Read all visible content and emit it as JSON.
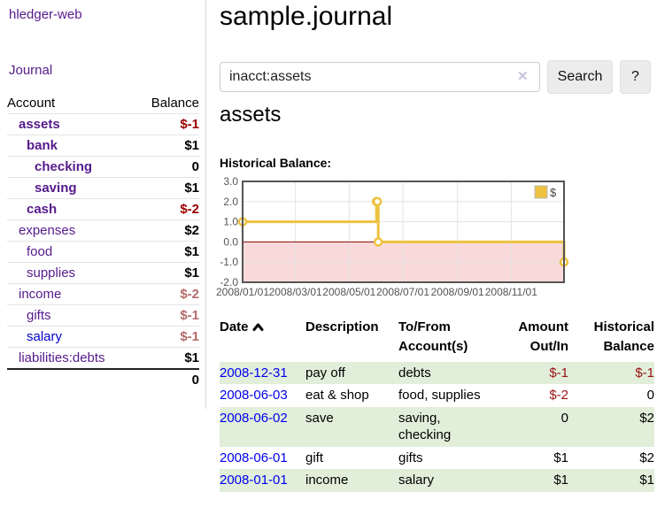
{
  "app": {
    "name": "hledger-web",
    "nav_journal": "Journal"
  },
  "sidebar": {
    "accounts_header": {
      "account": "Account",
      "balance": "Balance"
    },
    "accounts": [
      {
        "name": "assets",
        "depth": 1,
        "balance": "$-1",
        "bold": true,
        "negative": "strong"
      },
      {
        "name": "bank",
        "depth": 2,
        "balance": "$1",
        "bold": true
      },
      {
        "name": "checking",
        "depth": 3,
        "balance": "0",
        "bold": true
      },
      {
        "name": "saving",
        "depth": 3,
        "balance": "$1",
        "bold": true
      },
      {
        "name": "cash",
        "depth": 2,
        "balance": "$-2",
        "bold": true,
        "negative": "strong"
      },
      {
        "name": "expenses",
        "depth": 1,
        "balance": "$2"
      },
      {
        "name": "food",
        "depth": 2,
        "balance": "$1"
      },
      {
        "name": "supplies",
        "depth": 2,
        "balance": "$1"
      },
      {
        "name": "income",
        "depth": 1,
        "balance": "$-2",
        "negative": "soft"
      },
      {
        "name": "gifts",
        "depth": 2,
        "balance": "$-1",
        "negative": "soft"
      },
      {
        "name": "salary",
        "depth": 2,
        "balance": "$-1",
        "negative": "soft",
        "link_color": "blue"
      },
      {
        "name": "liabilities:debts",
        "depth": 1,
        "balance": "$1"
      }
    ],
    "total": "0"
  },
  "header": {
    "title": "sample.journal"
  },
  "search": {
    "query": "inacct:assets",
    "button_label": "Search",
    "help_label": "?"
  },
  "icons": {
    "clear_search": "✕"
  },
  "account_page": {
    "heading": "assets",
    "chart_label": "Historical Balance:"
  },
  "chart_data": {
    "type": "line",
    "title": "Historical Balance",
    "step": true,
    "series": [
      {
        "name": "$",
        "color": "#edc240",
        "points": [
          [
            "2008-01-01",
            1
          ],
          [
            "2008-06-01",
            2
          ],
          [
            "2008-06-02",
            2
          ],
          [
            "2008-06-03",
            0
          ],
          [
            "2008-12-31",
            -1
          ]
        ]
      }
    ],
    "x_range": [
      "2008-01-01",
      "2008-12-31"
    ],
    "ylim": [
      -2,
      3
    ],
    "y_ticks": [
      3.0,
      2.0,
      1.0,
      0.0,
      -1.0,
      -2.0
    ],
    "x_ticks": [
      "2008/01/01",
      "2008/03/01",
      "2008/05/01",
      "2008/07/01",
      "2008/09/01",
      "2008/11/01"
    ],
    "legend": {
      "label": "$",
      "position": "top-right"
    },
    "grid": true,
    "colors": {
      "border": "#545454",
      "gridline": "#e3e3e3",
      "negative_region": "#f9d9d9",
      "zero_line": "#8b0000",
      "tick_text": "#545454"
    }
  },
  "register": {
    "columns": [
      {
        "lines": [
          "Date"
        ],
        "sorted_asc": true,
        "align": "left"
      },
      {
        "lines": [
          "Description"
        ],
        "align": "left"
      },
      {
        "lines": [
          "To/From",
          "Account(s)"
        ],
        "align": "left"
      },
      {
        "lines": [
          "Amount",
          "Out/In"
        ],
        "align": "right"
      },
      {
        "lines": [
          "Historical",
          "Balance"
        ],
        "align": "right"
      }
    ],
    "rows": [
      {
        "date": "2008-12-31",
        "description": "pay off",
        "account_lines": [
          "debts"
        ],
        "amount": "$-1",
        "balance": "$-1"
      },
      {
        "date": "2008-06-03",
        "description": "eat & shop",
        "account_lines": [
          "food, supplies"
        ],
        "amount": "$-2",
        "balance": "0"
      },
      {
        "date": "2008-06-02",
        "description": "save",
        "account_lines": [
          "saving,",
          "checking"
        ],
        "amount": "0",
        "balance": "$2"
      },
      {
        "date": "2008-06-01",
        "description": "gift",
        "account_lines": [
          "gifts"
        ],
        "amount": "$1",
        "balance": "$2"
      },
      {
        "date": "2008-01-01",
        "description": "income",
        "account_lines": [
          "salary"
        ],
        "amount": "$1",
        "balance": "$1"
      }
    ]
  }
}
